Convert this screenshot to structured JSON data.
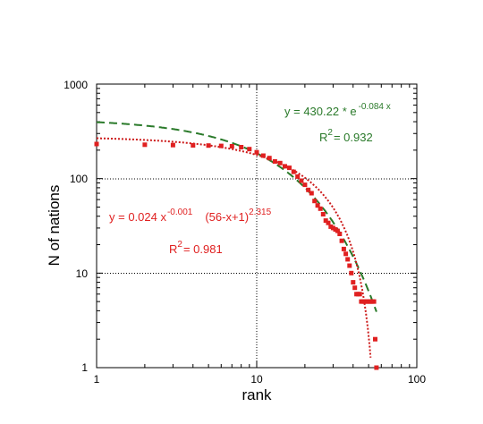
{
  "chart_data": {
    "type": "scatter",
    "xlabel": "rank",
    "ylabel": "N  of nations",
    "xscale": "log",
    "yscale": "log",
    "xlim": [
      1,
      100
    ],
    "ylim": [
      1,
      1000
    ],
    "grid": "major gridlines at x=10 and y=10, 100",
    "x_tick_labels": [
      "1",
      "10",
      "100"
    ],
    "y_tick_labels": [
      "1",
      "10",
      "100",
      "1000"
    ],
    "colors": {
      "points": "#e02020",
      "fit_power": "#cc1a1a",
      "fit_exp": "#2a7a2a",
      "grid": "#000000"
    },
    "series": [
      {
        "kind": "points",
        "color": "#e02020",
        "x": [
          1,
          2,
          3,
          4,
          5,
          6,
          7,
          8,
          9,
          10,
          11,
          12,
          13,
          14,
          15,
          16,
          17,
          18,
          19,
          20,
          21,
          22,
          23,
          24,
          25,
          26,
          27,
          28,
          29,
          30,
          31,
          32,
          33,
          34,
          35,
          36,
          37,
          38,
          39,
          40,
          41,
          42,
          43,
          44,
          45,
          46,
          47,
          48,
          49,
          50,
          51,
          52,
          53,
          54,
          55,
          56
        ],
        "y": [
          232,
          228,
          226,
          225,
          224,
          222,
          220,
          215,
          205,
          190,
          175,
          165,
          152,
          146,
          135,
          130,
          118,
          105,
          95,
          86,
          76,
          70,
          58,
          52,
          48,
          42,
          36,
          34,
          31,
          30,
          29,
          28,
          26,
          22,
          18,
          16,
          14,
          12,
          10,
          8,
          7,
          6,
          6,
          6,
          5,
          5,
          5,
          5,
          5,
          5,
          5,
          5,
          5,
          5,
          2,
          1
        ]
      },
      {
        "kind": "fit",
        "style": "dotted",
        "color": "#cc1a1a",
        "equation": "y = 0.024 x^-0.001 (56-x+1)^2.315",
        "r2": 0.981
      },
      {
        "kind": "fit",
        "style": "dashed",
        "color": "#2a7a2a",
        "equation": "y = 430.22 * e^-0.084 x",
        "r2": 0.932
      }
    ]
  },
  "annotations": {
    "exp_eq_main": "y = 430.22 * e",
    "exp_eq_sup": "-0.084 x",
    "exp_r2_main": "R",
    "exp_r2_sup": "2",
    "exp_r2_val": "= 0.932",
    "pow_eq_main": "y = 0.024  x",
    "pow_eq_sup1": "-0.001",
    "pow_eq_mid": "(56-x+1)",
    "pow_eq_sup2": "2.315",
    "pow_r2_main": "R",
    "pow_r2_sup": "2",
    "pow_r2_val": "= 0.981"
  }
}
